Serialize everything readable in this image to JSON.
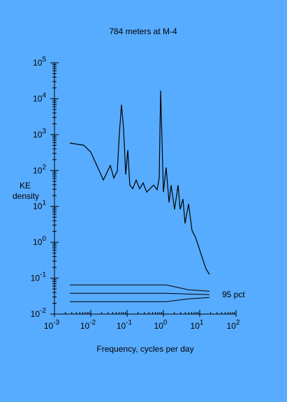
{
  "chart_data": {
    "type": "line",
    "title": "784 meters at M-4",
    "xlabel": "Frequency, cycles per day",
    "ylabel": [
      "KE",
      "density"
    ],
    "xlog": true,
    "ylog": true,
    "xlim": [
      0.001,
      100
    ],
    "ylim": [
      0.01,
      100000
    ],
    "xticks": [
      {
        "value": 0.001,
        "label": "10",
        "power": "-3"
      },
      {
        "value": 0.01,
        "label": "10",
        "power": "-2"
      },
      {
        "value": 0.1,
        "label": "10",
        "power": "-1"
      },
      {
        "value": 1,
        "label": "10",
        "power": "0"
      },
      {
        "value": 10,
        "label": "10",
        "power": "1"
      },
      {
        "value": 100,
        "label": "10",
        "power": "2"
      }
    ],
    "yticks": [
      {
        "value": 0.01,
        "label": "10",
        "power": "-2"
      },
      {
        "value": 0.1,
        "label": "10",
        "power": "-1"
      },
      {
        "value": 1,
        "label": "10",
        "power": "0"
      },
      {
        "value": 10,
        "label": "10",
        "power": "1"
      },
      {
        "value": 100,
        "label": "10",
        "power": "2"
      },
      {
        "value": 1000,
        "label": "10",
        "power": "3"
      },
      {
        "value": 10000,
        "label": "10",
        "power": "4"
      },
      {
        "value": 100000,
        "label": "10",
        "power": "5"
      }
    ],
    "series": [
      {
        "color": "#000000",
        "x": [
          0.00265,
          0.00643,
          0.01,
          0.0156,
          0.0222,
          0.0345,
          0.0432,
          0.0538,
          0.0614,
          0.0701,
          0.0802,
          0.0917,
          0.1045,
          0.119,
          0.143,
          0.178,
          0.222,
          0.277,
          0.345,
          0.538,
          0.671,
          0.767,
          0.838,
          0.916,
          1.0,
          1.19,
          1.43,
          1.63,
          2.03,
          2.53,
          2.9,
          3.45,
          3.95,
          4.92,
          6.14,
          7.67,
          9.57,
          11.9,
          14.9,
          18.6
        ],
        "values": [
          580,
          506,
          324,
          121,
          54,
          138,
          62,
          96,
          1130,
          6800,
          1420,
          77,
          370,
          39,
          31,
          54,
          31,
          45,
          25,
          39,
          29,
          62,
          16700,
          724,
          25,
          121,
          12.9,
          39,
          8.2,
          39,
          8.2,
          16,
          3.35,
          11.7,
          2.14,
          1.37,
          0.7,
          0.357,
          0.182,
          0.127
        ]
      }
    ],
    "confidence": {
      "label": "95 pct",
      "color": "#000000",
      "x": [
        0.00265,
        1.19,
        4.92,
        18.6
      ],
      "lines": [
        [
          0.065,
          0.065,
          0.0475,
          0.0435
        ],
        [
          0.038,
          0.038,
          0.036,
          0.0348
        ],
        [
          0.0222,
          0.0222,
          0.0265,
          0.029
        ]
      ]
    }
  }
}
